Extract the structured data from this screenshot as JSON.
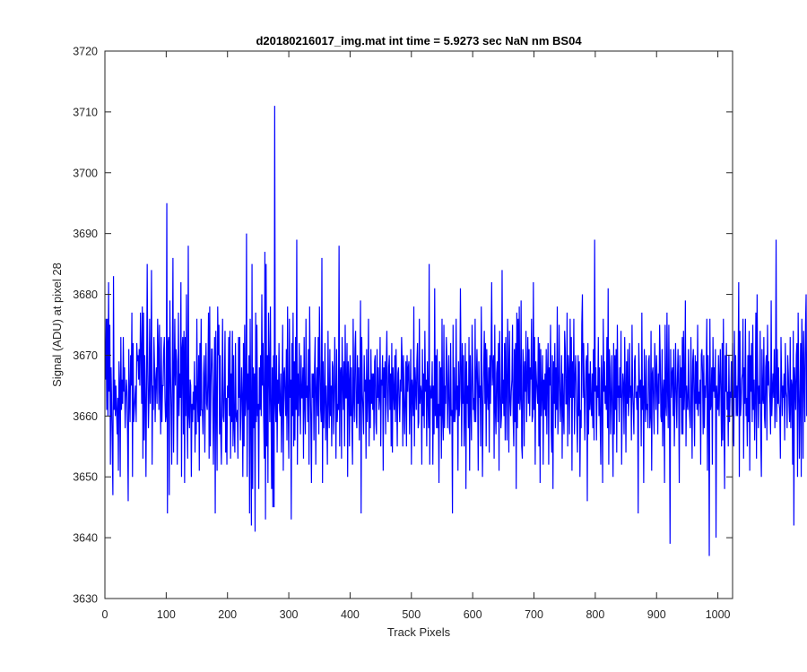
{
  "chart_data": {
    "type": "line",
    "title": "d20180216017_img.mat int time = 5.9273 sec  NaN nm BS04",
    "xlabel": "Track Pixels",
    "ylabel": "Signal (ADU) at pixel 28",
    "xlim": [
      0,
      1024
    ],
    "ylim": [
      3630,
      3720
    ],
    "xticks": [
      0,
      100,
      200,
      300,
      400,
      500,
      600,
      700,
      800,
      900,
      1000
    ],
    "yticks": [
      3630,
      3640,
      3650,
      3660,
      3670,
      3680,
      3690,
      3700,
      3710,
      3720
    ],
    "grid": false,
    "legend": "none",
    "series": [
      {
        "color": "#0000ff",
        "x_start": 1,
        "x_step": 1,
        "values": [
          3666,
          3676,
          3661,
          3676,
          3660,
          3682,
          3664,
          3675,
          3652,
          3668,
          3662,
          3655,
          3647,
          3683,
          3661,
          3666,
          3660,
          3665,
          3661,
          3657,
          3663,
          3651,
          3669,
          3665,
          3650,
          3673,
          3661,
          3666,
          3662,
          3673,
          3664,
          3668,
          3658,
          3663,
          3666,
          3664,
          3657,
          3646,
          3671,
          3663,
          3659,
          3670,
          3665,
          3677,
          3650,
          3672,
          3659,
          3661,
          3663,
          3665,
          3659,
          3672,
          3669,
          3670,
          3666,
          3671,
          3665,
          3677,
          3671,
          3662,
          3678,
          3653,
          3677,
          3656,
          3670,
          3663,
          3650,
          3666,
          3685,
          3667,
          3658,
          3663,
          3676,
          3662,
          3667,
          3684,
          3652,
          3665,
          3661,
          3673,
          3668,
          3659,
          3666,
          3668,
          3662,
          3676,
          3671,
          3661,
          3675,
          3664,
          3657,
          3673,
          3659,
          3665,
          3665,
          3671,
          3673,
          3663,
          3659,
          3660,
          3695,
          3644,
          3672,
          3673,
          3647,
          3679,
          3668,
          3661,
          3652,
          3667,
          3686,
          3654,
          3666,
          3676,
          3665,
          3671,
          3669,
          3652,
          3662,
          3677,
          3660,
          3667,
          3663,
          3682,
          3650,
          3671,
          3673,
          3657,
          3674,
          3649,
          3673,
          3660,
          3680,
          3661,
          3653,
          3688,
          3660,
          3658,
          3666,
          3665,
          3650,
          3662,
          3659,
          3664,
          3661,
          3669,
          3654,
          3665,
          3657,
          3676,
          3663,
          3659,
          3670,
          3651,
          3672,
          3660,
          3676,
          3661,
          3661,
          3657,
          3667,
          3670,
          3654,
          3666,
          3672,
          3662,
          3661,
          3666,
          3677,
          3653,
          3678,
          3655,
          3665,
          3671,
          3671,
          3663,
          3652,
          3664,
          3673,
          3644,
          3674,
          3662,
          3651,
          3678,
          3670,
          3675,
          3657,
          3670,
          3657,
          3652,
          3664,
          3676,
          3660,
          3659,
          3665,
          3674,
          3654,
          3663,
          3652,
          3665,
          3663,
          3673,
          3660,
          3674,
          3653,
          3667,
          3659,
          3674,
          3655,
          3670,
          3658,
          3654,
          3672,
          3660,
          3659,
          3661,
          3653,
          3673,
          3663,
          3673,
          3656,
          3661,
          3668,
          3663,
          3650,
          3672,
          3655,
          3675,
          3660,
          3663,
          3690,
          3650,
          3667,
          3661,
          3670,
          3644,
          3676,
          3660,
          3642,
          3685,
          3648,
          3668,
          3658,
          3667,
          3641,
          3677,
          3659,
          3675,
          3660,
          3662,
          3648,
          3668,
          3661,
          3670,
          3660,
          3680,
          3665,
          3672,
          3660,
          3653,
          3687,
          3643,
          3685,
          3655,
          3670,
          3649,
          3677,
          3668,
          3659,
          3678,
          3662,
          3648,
          3668,
          3645,
          3670,
          3645,
          3711,
          3662,
          3659,
          3670,
          3654,
          3666,
          3662,
          3672,
          3661,
          3660,
          3667,
          3654,
          3662,
          3675,
          3651,
          3667,
          3668,
          3663,
          3660,
          3671,
          3656,
          3678,
          3661,
          3653,
          3676,
          3663,
          3666,
          3643,
          3672,
          3660,
          3677,
          3655,
          3669,
          3656,
          3673,
          3661,
          3689,
          3652,
          3667,
          3660,
          3672,
          3664,
          3657,
          3670,
          3663,
          3663,
          3668,
          3653,
          3673,
          3662,
          3657,
          3676,
          3663,
          3665,
          3659,
          3671,
          3652,
          3678,
          3666,
          3659,
          3649,
          3667,
          3663,
          3667,
          3656,
          3668,
          3673,
          3652,
          3664,
          3668,
          3660,
          3673,
          3657,
          3678,
          3669,
          3661,
          3659,
          3686,
          3649,
          3669,
          3658,
          3663,
          3672,
          3656,
          3665,
          3660,
          3652,
          3674,
          3663,
          3658,
          3671,
          3660,
          3665,
          3655,
          3669,
          3668,
          3657,
          3663,
          3673,
          3664,
          3653,
          3671,
          3659,
          3662,
          3661,
          3688,
          3655,
          3667,
          3668,
          3653,
          3673,
          3666,
          3661,
          3669,
          3655,
          3675,
          3663,
          3663,
          3672,
          3650,
          3669,
          3666,
          3655,
          3670,
          3660,
          3668,
          3658,
          3652,
          3676,
          3663,
          3659,
          3671,
          3674,
          3660,
          3658,
          3670,
          3662,
          3668,
          3656,
          3665,
          3679,
          3644,
          3673,
          3664,
          3661,
          3657,
          3670,
          3664,
          3666,
          3653,
          3671,
          3659,
          3663,
          3676,
          3655,
          3666,
          3658,
          3671,
          3662,
          3667,
          3661,
          3667,
          3656,
          3669,
          3670,
          3659,
          3657,
          3671,
          3663,
          3668,
          3661,
          3663,
          3673,
          3655,
          3666,
          3665,
          3670,
          3651,
          3668,
          3663,
          3669,
          3657,
          3668,
          3674,
          3662,
          3659,
          3668,
          3670,
          3661,
          3667,
          3655,
          3672,
          3654,
          3668,
          3664,
          3661,
          3670,
          3659,
          3671,
          3663,
          3655,
          3667,
          3668,
          3662,
          3659,
          3666,
          3664,
          3673,
          3669,
          3655,
          3670,
          3663,
          3657,
          3663,
          3669,
          3655,
          3670,
          3664,
          3668,
          3669,
          3657,
          3663,
          3671,
          3652,
          3666,
          3664,
          3660,
          3678,
          3655,
          3668,
          3665,
          3661,
          3669,
          3672,
          3658,
          3659,
          3676,
          3662,
          3665,
          3664,
          3652,
          3671,
          3660,
          3667,
          3658,
          3674,
          3664,
          3666,
          3655,
          3669,
          3663,
          3658,
          3685,
          3652,
          3665,
          3663,
          3663,
          3669,
          3652,
          3665,
          3657,
          3681,
          3660,
          3670,
          3658,
          3671,
          3658,
          3662,
          3649,
          3669,
          3660,
          3668,
          3653,
          3676,
          3660,
          3656,
          3675,
          3658,
          3665,
          3662,
          3673,
          3669,
          3658,
          3664,
          3670,
          3658,
          3657,
          3672,
          3660,
          3661,
          3644,
          3675,
          3659,
          3668,
          3659,
          3661,
          3676,
          3661,
          3665,
          3651,
          3669,
          3660,
          3663,
          3681,
          3668,
          3655,
          3672,
          3662,
          3670,
          3655,
          3661,
          3672,
          3648,
          3669,
          3662,
          3665,
          3658,
          3673,
          3651,
          3670,
          3662,
          3656,
          3675,
          3668,
          3661,
          3663,
          3659,
          3676,
          3659,
          3666,
          3671,
          3665,
          3651,
          3669,
          3663,
          3665,
          3655,
          3678,
          3666,
          3650,
          3662,
          3668,
          3674,
          3662,
          3672,
          3655,
          3671,
          3664,
          3661,
          3668,
          3654,
          3670,
          3662,
          3670,
          3682,
          3665,
          3668,
          3670,
          3653,
          3675,
          3661,
          3657,
          3667,
          3669,
          3659,
          3672,
          3651,
          3674,
          3665,
          3658,
          3660,
          3684,
          3662,
          3666,
          3660,
          3672,
          3656,
          3673,
          3665,
          3656,
          3676,
          3669,
          3654,
          3674,
          3663,
          3660,
          3664,
          3666,
          3675,
          3660,
          3655,
          3671,
          3659,
          3672,
          3648,
          3677,
          3658,
          3676,
          3662,
          3678,
          3661,
          3663,
          3679,
          3655,
          3653,
          3671,
          3668,
          3655,
          3669,
          3664,
          3674,
          3659,
          3666,
          3673,
          3662,
          3671,
          3660,
          3668,
          3666,
          3676,
          3659,
          3660,
          3682,
          3661,
          3673,
          3652,
          3669,
          3666,
          3664,
          3662,
          3673,
          3655,
          3672,
          3649,
          3671,
          3660,
          3664,
          3670,
          3652,
          3666,
          3661,
          3667,
          3660,
          3671,
          3657,
          3667,
          3672,
          3652,
          3668,
          3665,
          3675,
          3658,
          3654,
          3670,
          3648,
          3669,
          3662,
          3672,
          3658,
          3668,
          3661,
          3678,
          3657,
          3662,
          3675,
          3666,
          3659,
          3663,
          3670,
          3653,
          3667,
          3661,
          3657,
          3674,
          3671,
          3662,
          3662,
          3677,
          3655,
          3670,
          3667,
          3657,
          3676,
          3663,
          3673,
          3651,
          3669,
          3663,
          3676,
          3657,
          3666,
          3670,
          3665,
          3659,
          3654,
          3670,
          3660,
          3669,
          3650,
          3661,
          3658,
          3675,
          3680,
          3663,
          3672,
          3664,
          3656,
          3664,
          3669,
          3670,
          3646,
          3672,
          3657,
          3667,
          3661,
          3669,
          3662,
          3660,
          3667,
          3658,
          3671,
          3656,
          3689,
          3664,
          3668,
          3656,
          3665,
          3663,
          3673,
          3660,
          3668,
          3659,
          3652,
          3670,
          3665,
          3649,
          3676,
          3664,
          3669,
          3662,
          3665,
          3661,
          3673,
          3658,
          3681,
          3652,
          3671,
          3668,
          3657,
          3663,
          3670,
          3660,
          3650,
          3672,
          3657,
          3670,
          3661,
          3671,
          3654,
          3675,
          3663,
          3665,
          3659,
          3668,
          3663,
          3674,
          3652,
          3662,
          3667,
          3665,
          3657,
          3673,
          3665,
          3654,
          3669,
          3662,
          3671,
          3660,
          3663,
          3672,
          3663,
          3665,
          3656,
          3675,
          3664,
          3661,
          3657,
          3669,
          3670,
          3663,
          3664,
          3661,
          3665,
          3644,
          3672,
          3666,
          3663,
          3666,
          3655,
          3677,
          3661,
          3665,
          3649,
          3671,
          3664,
          3659,
          3670,
          3661,
          3662,
          3658,
          3669,
          3670,
          3658,
          3660,
          3674,
          3651,
          3667,
          3668,
          3662,
          3657,
          3672,
          3667,
          3661,
          3670,
          3665,
          3657,
          3667,
          3662,
          3675,
          3669,
          3660,
          3659,
          3671,
          3655,
          3664,
          3666,
          3649,
          3675,
          3662,
          3660,
          3677,
          3664,
          3658,
          3675,
          3661,
          3639,
          3671,
          3663,
          3667,
          3668,
          3660,
          3671,
          3655,
          3663,
          3672,
          3664,
          3658,
          3666,
          3671,
          3664,
          3649,
          3670,
          3663,
          3668,
          3657,
          3673,
          3657,
          3674,
          3661,
          3665,
          3679,
          3655,
          3665,
          3662,
          3661,
          3671,
          3663,
          3660,
          3658,
          3673,
          3664,
          3653,
          3669,
          3671,
          3663,
          3655,
          3670,
          3662,
          3669,
          3661,
          3675,
          3660,
          3664,
          3662,
          3666,
          3652,
          3670,
          3671,
          3667,
          3657,
          3670,
          3658,
          3665,
          3663,
          3668,
          3676,
          3651,
          3670,
          3663,
          3637,
          3676,
          3661,
          3662,
          3668,
          3652,
          3673,
          3664,
          3668,
          3663,
          3671,
          3640,
          3665,
          3662,
          3661,
          3670,
          3660,
          3666,
          3671,
          3663,
          3655,
          3672,
          3656,
          3676,
          3660,
          3648,
          3670,
          3664,
          3672,
          3661,
          3664,
          3655,
          3670,
          3659,
          3664,
          3663,
          3669,
          3660,
          3672,
          3658,
          3655,
          3674,
          3663,
          3670,
          3660,
          3665,
          3660,
          3667,
          3682,
          3650,
          3674,
          3660,
          3662,
          3666,
          3667,
          3676,
          3653,
          3668,
          3662,
          3676,
          3660,
          3663,
          3655,
          3670,
          3659,
          3674,
          3651,
          3670,
          3664,
          3672,
          3659,
          3675,
          3661,
          3666,
          3656,
          3663,
          3677,
          3653,
          3680,
          3666,
          3658,
          3665,
          3662,
          3674,
          3656,
          3650,
          3671,
          3663,
          3662,
          3673,
          3660,
          3658,
          3668,
          3670,
          3656,
          3675,
          3665,
          3669,
          3665,
          3662,
          3657,
          3679,
          3660,
          3664,
          3667,
          3663,
          3671,
          3658,
          3664,
          3689,
          3659,
          3671,
          3662,
          3668,
          3662,
          3661,
          3653,
          3673,
          3666,
          3660,
          3665,
          3663,
          3667,
          3656,
          3672,
          3664,
          3663,
          3658,
          3670,
          3667,
          3662,
          3659,
          3673,
          3658,
          3666,
          3665,
          3652,
          3674,
          3642,
          3668,
          3665,
          3661,
          3670,
          3672,
          3650,
          3677,
          3665,
          3653,
          3663,
          3672,
          3650,
          3676,
          3670,
          3653,
          3674,
          3666,
          3659,
          3675,
          3680,
          3660,
          3667,
          3681,
          3660
        ]
      }
    ]
  }
}
